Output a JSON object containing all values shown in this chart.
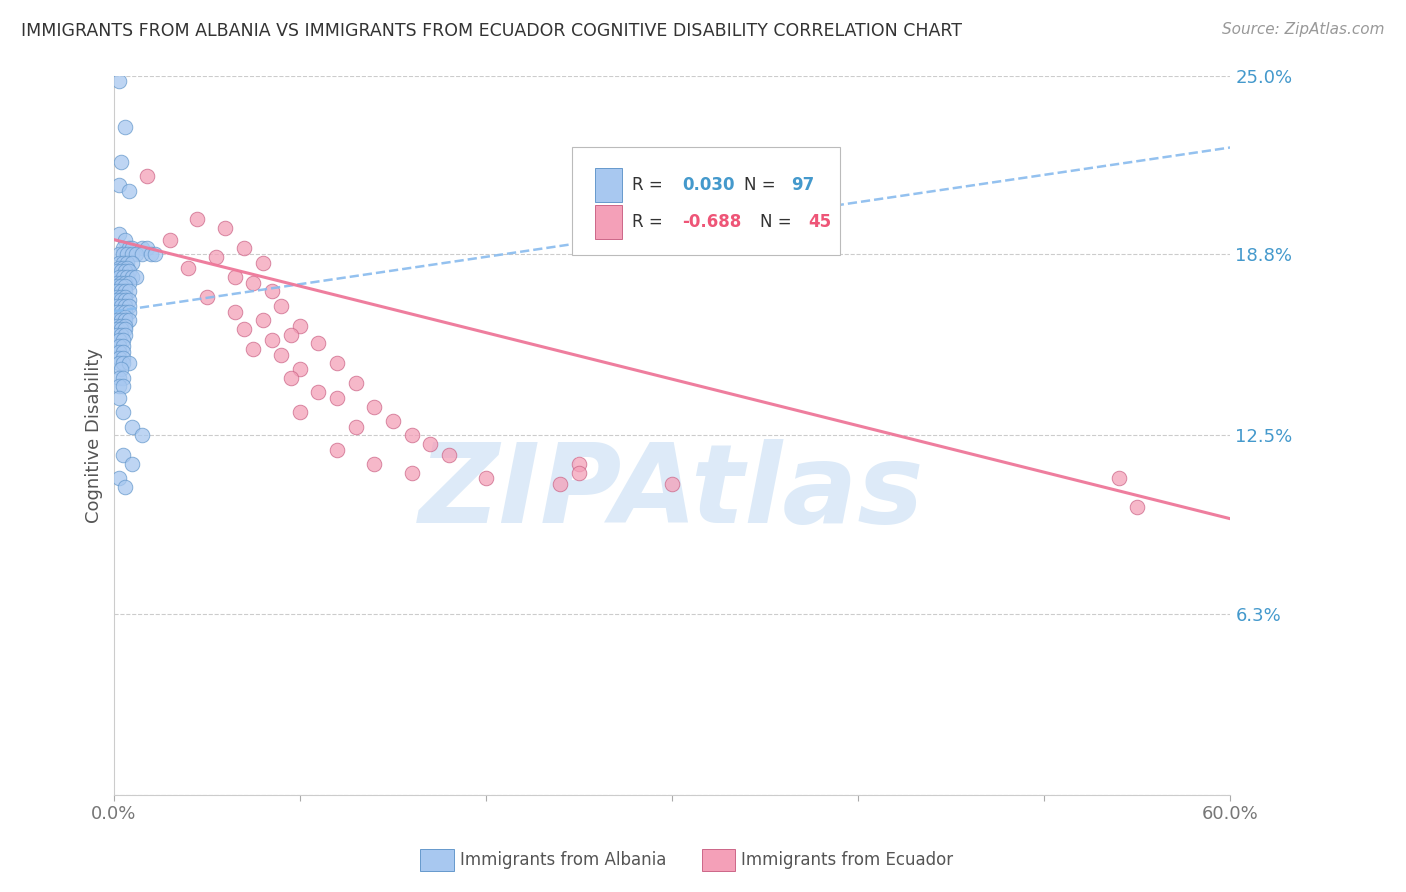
{
  "title": "IMMIGRANTS FROM ALBANIA VS IMMIGRANTS FROM ECUADOR COGNITIVE DISABILITY CORRELATION CHART",
  "source": "Source: ZipAtlas.com",
  "ylabel": "Cognitive Disability",
  "xlim": [
    0.0,
    0.6
  ],
  "ylim": [
    0.0,
    0.25
  ],
  "yticks": [
    0.0,
    0.063,
    0.125,
    0.188,
    0.25
  ],
  "ytick_labels": [
    "",
    "6.3%",
    "12.5%",
    "18.8%",
    "25.0%"
  ],
  "xticks": [
    0.0,
    0.1,
    0.2,
    0.3,
    0.4,
    0.5,
    0.6
  ],
  "xtick_labels": [
    "0.0%",
    "",
    "",
    "",
    "",
    "",
    "60.0%"
  ],
  "albania_color": "#A8C8F0",
  "albania_edge_color": "#6699CC",
  "ecuador_color": "#F4A0B8",
  "ecuador_edge_color": "#CC6688",
  "albania_trend_color": "#88BBEE",
  "ecuador_trend_color": "#EE7799",
  "legend_R_albania_color": "#4499CC",
  "legend_R_ecuador_color": "#EE5577",
  "watermark": "ZIPAtlas",
  "watermark_color": "#AACCEE",
  "background_color": "#FFFFFF",
  "grid_color": "#CCCCCC",
  "title_color": "#333333",
  "axis_label_color": "#555555",
  "right_tick_color": "#4499CC",
  "albania_trend_start_y": 0.168,
  "albania_trend_end_y": 0.225,
  "ecuador_trend_start_y": 0.193,
  "ecuador_trend_end_y": 0.096,
  "albania_scatter": [
    [
      0.003,
      0.248
    ],
    [
      0.006,
      0.232
    ],
    [
      0.004,
      0.22
    ],
    [
      0.003,
      0.212
    ],
    [
      0.008,
      0.21
    ],
    [
      0.003,
      0.195
    ],
    [
      0.006,
      0.193
    ],
    [
      0.005,
      0.19
    ],
    [
      0.008,
      0.19
    ],
    [
      0.01,
      0.19
    ],
    [
      0.015,
      0.19
    ],
    [
      0.018,
      0.19
    ],
    [
      0.003,
      0.188
    ],
    [
      0.005,
      0.188
    ],
    [
      0.007,
      0.188
    ],
    [
      0.01,
      0.188
    ],
    [
      0.012,
      0.188
    ],
    [
      0.015,
      0.188
    ],
    [
      0.02,
      0.188
    ],
    [
      0.022,
      0.188
    ],
    [
      0.003,
      0.185
    ],
    [
      0.005,
      0.185
    ],
    [
      0.007,
      0.185
    ],
    [
      0.01,
      0.185
    ],
    [
      0.003,
      0.183
    ],
    [
      0.005,
      0.183
    ],
    [
      0.007,
      0.183
    ],
    [
      0.002,
      0.182
    ],
    [
      0.004,
      0.182
    ],
    [
      0.006,
      0.182
    ],
    [
      0.008,
      0.182
    ],
    [
      0.003,
      0.18
    ],
    [
      0.005,
      0.18
    ],
    [
      0.007,
      0.18
    ],
    [
      0.01,
      0.18
    ],
    [
      0.012,
      0.18
    ],
    [
      0.002,
      0.178
    ],
    [
      0.004,
      0.178
    ],
    [
      0.006,
      0.178
    ],
    [
      0.008,
      0.178
    ],
    [
      0.002,
      0.177
    ],
    [
      0.004,
      0.177
    ],
    [
      0.006,
      0.177
    ],
    [
      0.002,
      0.175
    ],
    [
      0.004,
      0.175
    ],
    [
      0.006,
      0.175
    ],
    [
      0.008,
      0.175
    ],
    [
      0.002,
      0.173
    ],
    [
      0.004,
      0.173
    ],
    [
      0.006,
      0.173
    ],
    [
      0.002,
      0.172
    ],
    [
      0.004,
      0.172
    ],
    [
      0.006,
      0.172
    ],
    [
      0.008,
      0.172
    ],
    [
      0.002,
      0.17
    ],
    [
      0.004,
      0.17
    ],
    [
      0.006,
      0.17
    ],
    [
      0.008,
      0.17
    ],
    [
      0.002,
      0.168
    ],
    [
      0.004,
      0.168
    ],
    [
      0.006,
      0.168
    ],
    [
      0.008,
      0.168
    ],
    [
      0.002,
      0.166
    ],
    [
      0.004,
      0.166
    ],
    [
      0.006,
      0.166
    ],
    [
      0.002,
      0.165
    ],
    [
      0.004,
      0.165
    ],
    [
      0.006,
      0.165
    ],
    [
      0.008,
      0.165
    ],
    [
      0.002,
      0.163
    ],
    [
      0.004,
      0.163
    ],
    [
      0.006,
      0.163
    ],
    [
      0.002,
      0.162
    ],
    [
      0.004,
      0.162
    ],
    [
      0.006,
      0.162
    ],
    [
      0.002,
      0.16
    ],
    [
      0.004,
      0.16
    ],
    [
      0.006,
      0.16
    ],
    [
      0.003,
      0.158
    ],
    [
      0.005,
      0.158
    ],
    [
      0.003,
      0.156
    ],
    [
      0.005,
      0.156
    ],
    [
      0.003,
      0.154
    ],
    [
      0.005,
      0.154
    ],
    [
      0.003,
      0.152
    ],
    [
      0.005,
      0.152
    ],
    [
      0.003,
      0.15
    ],
    [
      0.005,
      0.15
    ],
    [
      0.008,
      0.15
    ],
    [
      0.004,
      0.148
    ],
    [
      0.003,
      0.145
    ],
    [
      0.005,
      0.145
    ],
    [
      0.003,
      0.142
    ],
    [
      0.005,
      0.142
    ],
    [
      0.003,
      0.138
    ],
    [
      0.005,
      0.133
    ],
    [
      0.01,
      0.128
    ],
    [
      0.015,
      0.125
    ],
    [
      0.005,
      0.118
    ],
    [
      0.01,
      0.115
    ],
    [
      0.003,
      0.11
    ],
    [
      0.006,
      0.107
    ]
  ],
  "ecuador_scatter": [
    [
      0.018,
      0.215
    ],
    [
      0.045,
      0.2
    ],
    [
      0.06,
      0.197
    ],
    [
      0.03,
      0.193
    ],
    [
      0.07,
      0.19
    ],
    [
      0.055,
      0.187
    ],
    [
      0.08,
      0.185
    ],
    [
      0.04,
      0.183
    ],
    [
      0.065,
      0.18
    ],
    [
      0.075,
      0.178
    ],
    [
      0.085,
      0.175
    ],
    [
      0.05,
      0.173
    ],
    [
      0.09,
      0.17
    ],
    [
      0.065,
      0.168
    ],
    [
      0.08,
      0.165
    ],
    [
      0.1,
      0.163
    ],
    [
      0.07,
      0.162
    ],
    [
      0.095,
      0.16
    ],
    [
      0.085,
      0.158
    ],
    [
      0.11,
      0.157
    ],
    [
      0.075,
      0.155
    ],
    [
      0.09,
      0.153
    ],
    [
      0.12,
      0.15
    ],
    [
      0.1,
      0.148
    ],
    [
      0.095,
      0.145
    ],
    [
      0.13,
      0.143
    ],
    [
      0.11,
      0.14
    ],
    [
      0.12,
      0.138
    ],
    [
      0.14,
      0.135
    ],
    [
      0.1,
      0.133
    ],
    [
      0.15,
      0.13
    ],
    [
      0.13,
      0.128
    ],
    [
      0.16,
      0.125
    ],
    [
      0.17,
      0.122
    ],
    [
      0.12,
      0.12
    ],
    [
      0.18,
      0.118
    ],
    [
      0.14,
      0.115
    ],
    [
      0.16,
      0.112
    ],
    [
      0.2,
      0.11
    ],
    [
      0.25,
      0.115
    ],
    [
      0.24,
      0.108
    ],
    [
      0.3,
      0.108
    ],
    [
      0.25,
      0.112
    ],
    [
      0.54,
      0.11
    ],
    [
      0.55,
      0.1
    ]
  ]
}
